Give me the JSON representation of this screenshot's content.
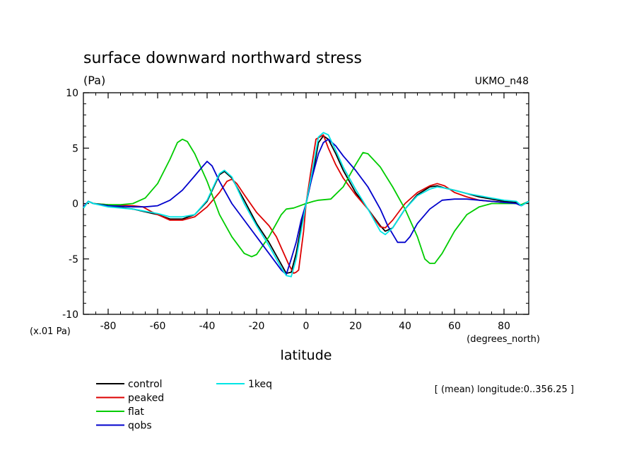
{
  "chart_data": {
    "type": "line",
    "title": "surface downward northward stress",
    "units_label": "(Pa)",
    "model_label": "UKMO_n48",
    "scale_note": "(x.01 Pa)",
    "xlabel": "latitude",
    "x_units": "(degrees_north)",
    "mean_note": "[ (mean) longitude:0..356.25 ]",
    "xlim": [
      -90,
      90
    ],
    "ylim": [
      -10,
      10
    ],
    "x_ticks": [
      -80,
      -60,
      -40,
      -20,
      0,
      20,
      40,
      60,
      80
    ],
    "x_tick_labels": [
      "-80",
      "-60",
      "-40",
      "-20",
      "0",
      "20",
      "40",
      "60",
      "80"
    ],
    "y_ticks": [
      -10,
      -5,
      0,
      5,
      10
    ],
    "y_tick_labels": [
      "-10",
      "-5",
      "0",
      "5",
      "10"
    ],
    "grid": false,
    "legend_position": "bottom",
    "series": [
      {
        "name": "control",
        "color": "#000000",
        "points": [
          [
            -90,
            -0.4
          ],
          [
            -88,
            0.2
          ],
          [
            -86,
            0
          ],
          [
            -80,
            -0.2
          ],
          [
            -70,
            -0.5
          ],
          [
            -60,
            -1.0
          ],
          [
            -55,
            -1.4
          ],
          [
            -50,
            -1.4
          ],
          [
            -45,
            -1.0
          ],
          [
            -40,
            0.2
          ],
          [
            -35,
            2.6
          ],
          [
            -33,
            2.9
          ],
          [
            -30,
            2.3
          ],
          [
            -25,
            0.3
          ],
          [
            -20,
            -1.8
          ],
          [
            -15,
            -3.5
          ],
          [
            -10,
            -5.5
          ],
          [
            -8,
            -6.3
          ],
          [
            -6,
            -6.2
          ],
          [
            -4,
            -4.5
          ],
          [
            -2,
            -2.0
          ],
          [
            0,
            0
          ],
          [
            3,
            3.0
          ],
          [
            5,
            5.5
          ],
          [
            7,
            6.1
          ],
          [
            9,
            5.8
          ],
          [
            12,
            4.5
          ],
          [
            15,
            3.0
          ],
          [
            20,
            1.0
          ],
          [
            25,
            -0.5
          ],
          [
            30,
            -2.0
          ],
          [
            32,
            -2.5
          ],
          [
            35,
            -2.2
          ],
          [
            40,
            -0.5
          ],
          [
            45,
            0.8
          ],
          [
            50,
            1.5
          ],
          [
            53,
            1.6
          ],
          [
            56,
            1.4
          ],
          [
            60,
            1.2
          ],
          [
            65,
            0.9
          ],
          [
            70,
            0.6
          ],
          [
            75,
            0.4
          ],
          [
            80,
            0.2
          ],
          [
            85,
            0.1
          ],
          [
            87,
            -0.2
          ],
          [
            90,
            0.2
          ]
        ]
      },
      {
        "name": "peaked",
        "color": "#dd0000",
        "points": [
          [
            -90,
            -0.3
          ],
          [
            -88,
            0.2
          ],
          [
            -86,
            0
          ],
          [
            -80,
            -0.1
          ],
          [
            -70,
            -0.2
          ],
          [
            -66,
            -0.3
          ],
          [
            -62,
            -0.8
          ],
          [
            -60,
            -1.0
          ],
          [
            -55,
            -1.5
          ],
          [
            -50,
            -1.5
          ],
          [
            -45,
            -1.2
          ],
          [
            -40,
            -0.3
          ],
          [
            -35,
            1.0
          ],
          [
            -32,
            2.0
          ],
          [
            -30,
            2.2
          ],
          [
            -28,
            1.8
          ],
          [
            -25,
            0.8
          ],
          [
            -20,
            -0.8
          ],
          [
            -15,
            -2.0
          ],
          [
            -12,
            -3.0
          ],
          [
            -10,
            -4.0
          ],
          [
            -7,
            -5.5
          ],
          [
            -5,
            -6.3
          ],
          [
            -4,
            -6.2
          ],
          [
            -3,
            -6.0
          ],
          [
            -1,
            -2.5
          ],
          [
            0,
            0
          ],
          [
            2,
            3.0
          ],
          [
            4,
            5.8
          ],
          [
            7,
            6.2
          ],
          [
            9,
            5.0
          ],
          [
            12,
            3.5
          ],
          [
            15,
            2.3
          ],
          [
            20,
            0.8
          ],
          [
            25,
            -0.5
          ],
          [
            28,
            -1.5
          ],
          [
            30,
            -2.1
          ],
          [
            32,
            -2.2
          ],
          [
            35,
            -1.5
          ],
          [
            40,
            0
          ],
          [
            45,
            1.0
          ],
          [
            50,
            1.6
          ],
          [
            53,
            1.8
          ],
          [
            56,
            1.6
          ],
          [
            60,
            1.0
          ],
          [
            65,
            0.6
          ],
          [
            70,
            0.3
          ],
          [
            80,
            0.1
          ],
          [
            85,
            0
          ],
          [
            87,
            -0.2
          ],
          [
            90,
            0.2
          ]
        ]
      },
      {
        "name": "flat",
        "color": "#00cc00",
        "points": [
          [
            -90,
            -0.4
          ],
          [
            -88,
            0.2
          ],
          [
            -86,
            0
          ],
          [
            -80,
            -0.1
          ],
          [
            -75,
            -0.1
          ],
          [
            -70,
            0
          ],
          [
            -65,
            0.5
          ],
          [
            -60,
            1.8
          ],
          [
            -55,
            4.0
          ],
          [
            -52,
            5.5
          ],
          [
            -50,
            5.8
          ],
          [
            -48,
            5.6
          ],
          [
            -45,
            4.5
          ],
          [
            -40,
            2.0
          ],
          [
            -35,
            -1.0
          ],
          [
            -30,
            -3.0
          ],
          [
            -25,
            -4.5
          ],
          [
            -22,
            -4.8
          ],
          [
            -20,
            -4.6
          ],
          [
            -15,
            -3.0
          ],
          [
            -10,
            -1.0
          ],
          [
            -8,
            -0.5
          ],
          [
            -5,
            -0.4
          ],
          [
            0,
            0
          ],
          [
            3,
            0.2
          ],
          [
            5,
            0.3
          ],
          [
            10,
            0.4
          ],
          [
            15,
            1.5
          ],
          [
            20,
            3.5
          ],
          [
            23,
            4.6
          ],
          [
            25,
            4.5
          ],
          [
            30,
            3.3
          ],
          [
            35,
            1.5
          ],
          [
            40,
            -0.5
          ],
          [
            45,
            -3.0
          ],
          [
            48,
            -5.0
          ],
          [
            50,
            -5.4
          ],
          [
            52,
            -5.4
          ],
          [
            55,
            -4.5
          ],
          [
            60,
            -2.5
          ],
          [
            65,
            -1.0
          ],
          [
            70,
            -0.3
          ],
          [
            75,
            0
          ],
          [
            80,
            0
          ],
          [
            85,
            0
          ],
          [
            87,
            -0.1
          ],
          [
            90,
            0.2
          ]
        ]
      },
      {
        "name": "qobs",
        "color": "#0000cc",
        "points": [
          [
            -90,
            -0.3
          ],
          [
            -88,
            0.2
          ],
          [
            -86,
            0
          ],
          [
            -80,
            -0.2
          ],
          [
            -70,
            -0.3
          ],
          [
            -65,
            -0.3
          ],
          [
            -60,
            -0.2
          ],
          [
            -55,
            0.3
          ],
          [
            -50,
            1.2
          ],
          [
            -45,
            2.5
          ],
          [
            -42,
            3.3
          ],
          [
            -40,
            3.8
          ],
          [
            -38,
            3.4
          ],
          [
            -35,
            2.0
          ],
          [
            -30,
            0
          ],
          [
            -25,
            -1.5
          ],
          [
            -20,
            -3.0
          ],
          [
            -15,
            -4.5
          ],
          [
            -10,
            -6.0
          ],
          [
            -8,
            -6.4
          ],
          [
            -6,
            -5.0
          ],
          [
            -4,
            -3.5
          ],
          [
            -2,
            -1.5
          ],
          [
            0,
            0
          ],
          [
            2,
            2.0
          ],
          [
            5,
            4.5
          ],
          [
            7,
            5.5
          ],
          [
            9,
            5.8
          ],
          [
            12,
            5.2
          ],
          [
            15,
            4.3
          ],
          [
            20,
            3.0
          ],
          [
            25,
            1.5
          ],
          [
            30,
            -0.5
          ],
          [
            33,
            -2.0
          ],
          [
            37,
            -3.5
          ],
          [
            40,
            -3.5
          ],
          [
            42,
            -3.0
          ],
          [
            45,
            -1.8
          ],
          [
            50,
            -0.5
          ],
          [
            55,
            0.3
          ],
          [
            60,
            0.4
          ],
          [
            65,
            0.4
          ],
          [
            70,
            0.3
          ],
          [
            75,
            0.2
          ],
          [
            80,
            0.1
          ],
          [
            85,
            0
          ],
          [
            87,
            -0.2
          ],
          [
            90,
            0.2
          ]
        ]
      },
      {
        "name": "1keq",
        "color": "#00e5e5",
        "points": [
          [
            -90,
            -0.4
          ],
          [
            -88,
            0.2
          ],
          [
            -86,
            0
          ],
          [
            -80,
            -0.3
          ],
          [
            -70,
            -0.5
          ],
          [
            -60,
            -0.9
          ],
          [
            -55,
            -1.2
          ],
          [
            -50,
            -1.2
          ],
          [
            -45,
            -1.0
          ],
          [
            -40,
            0.3
          ],
          [
            -35,
            2.7
          ],
          [
            -33,
            3.0
          ],
          [
            -30,
            2.4
          ],
          [
            -25,
            0
          ],
          [
            -20,
            -2.0
          ],
          [
            -15,
            -3.8
          ],
          [
            -10,
            -5.8
          ],
          [
            -8,
            -6.5
          ],
          [
            -6,
            -6.6
          ],
          [
            -4,
            -5.0
          ],
          [
            -2,
            -2.5
          ],
          [
            0,
            0
          ],
          [
            3,
            3.5
          ],
          [
            5,
            6.0
          ],
          [
            7,
            6.4
          ],
          [
            9,
            6.2
          ],
          [
            12,
            4.8
          ],
          [
            15,
            3.3
          ],
          [
            20,
            1.3
          ],
          [
            25,
            -0.5
          ],
          [
            30,
            -2.5
          ],
          [
            32,
            -2.8
          ],
          [
            35,
            -2.2
          ],
          [
            40,
            -0.5
          ],
          [
            45,
            0.7
          ],
          [
            50,
            1.3
          ],
          [
            53,
            1.5
          ],
          [
            56,
            1.4
          ],
          [
            60,
            1.2
          ],
          [
            65,
            0.9
          ],
          [
            70,
            0.7
          ],
          [
            75,
            0.5
          ],
          [
            80,
            0.3
          ],
          [
            85,
            0.2
          ],
          [
            87,
            -0.2
          ],
          [
            90,
            0.2
          ]
        ]
      }
    ]
  }
}
